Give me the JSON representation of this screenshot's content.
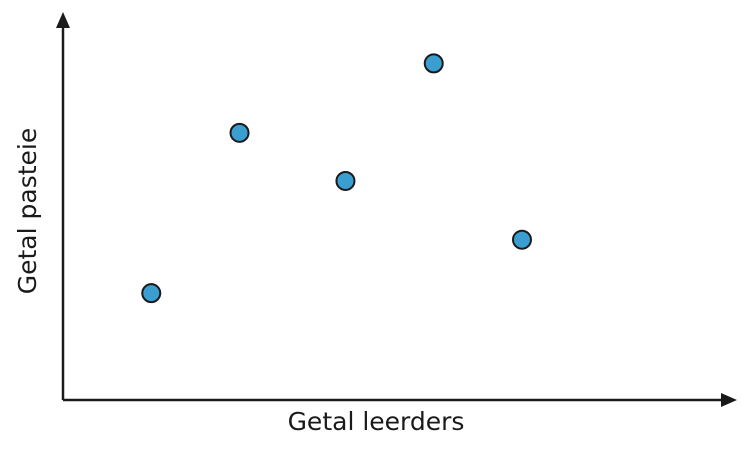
{
  "chart_data": {
    "type": "scatter",
    "title": "",
    "xlabel": "Getal leerders",
    "ylabel": "Getal pasteie",
    "points": [
      {
        "x": 1.0,
        "y": 1.0
      },
      {
        "x": 2.0,
        "y": 4.0
      },
      {
        "x": 3.2,
        "y": 3.1
      },
      {
        "x": 4.2,
        "y": 5.3
      },
      {
        "x": 5.2,
        "y": 2.0
      }
    ],
    "xlim": [
      0,
      7.5
    ],
    "ylim": [
      -1.0,
      6.0
    ],
    "grid": false,
    "ticks": false,
    "marker_fill": "#3a9fd0",
    "marker_edge": "#1a1a1a",
    "axis_color": "#1a1a1a"
  }
}
